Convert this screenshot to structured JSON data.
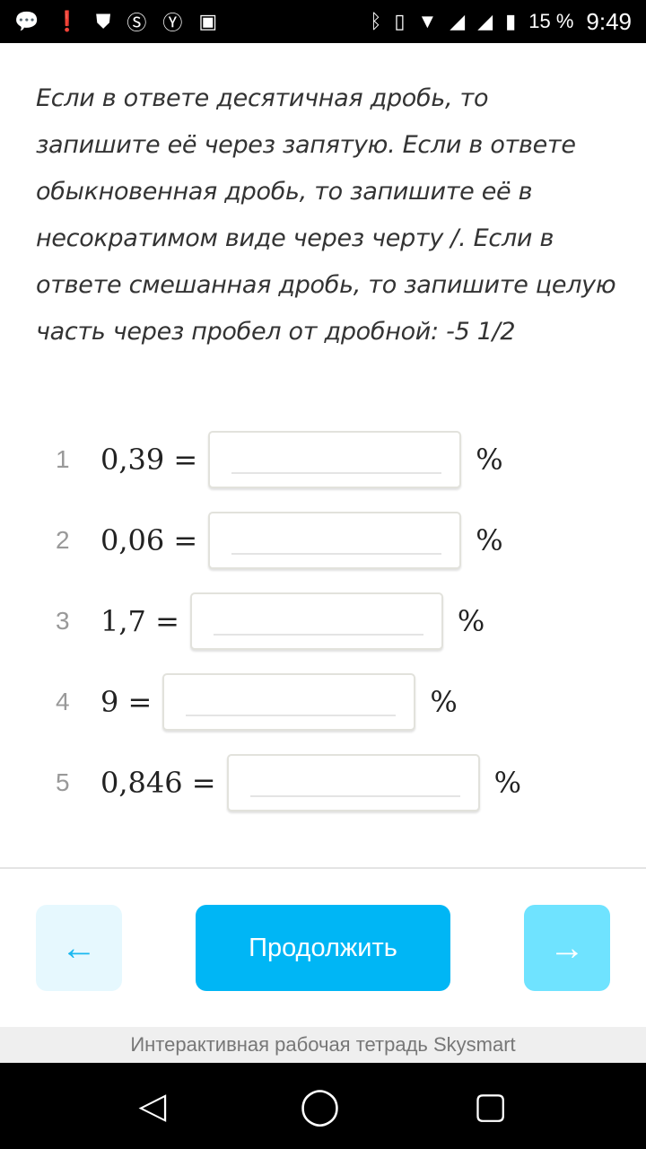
{
  "status_bar": {
    "battery": "15 %",
    "time": "9:49",
    "icons": [
      "message-icon",
      "alert-icon",
      "shield-icon",
      "skype-icon",
      "yandex-icon",
      "image-icon",
      "bluetooth-icon",
      "vibrate-icon",
      "wifi-icon",
      "signal-icon",
      "signal-icon",
      "battery-icon"
    ]
  },
  "instructions": "Если в ответе десятичная дробь, то запишите её через запятую. Если в ответе обыкновенная дробь, то запишите её в несократимом виде через черту /. Если в ответе смешанная дробь, то запишите целую часть через пробел от дробной: -5 1/2",
  "tasks": [
    {
      "num": "1",
      "expr": "0,39 =",
      "value": "",
      "unit": "%"
    },
    {
      "num": "2",
      "expr": "0,06 =",
      "value": "",
      "unit": "%"
    },
    {
      "num": "3",
      "expr": "1,7 =",
      "value": "",
      "unit": "%"
    },
    {
      "num": "4",
      "expr": "9 =",
      "value": "",
      "unit": "%"
    },
    {
      "num": "5",
      "expr": "0,846 =",
      "value": "",
      "unit": "%"
    }
  ],
  "buttons": {
    "back": "←",
    "continue": "Продолжить",
    "next": "→"
  },
  "colors": {
    "accent": "#00b6f5",
    "next": "#6fe3ff",
    "back_bg": "#e6f8fe"
  },
  "footer": "Интерактивная рабочая тетрадь Skysmart",
  "nav": {
    "back": "◁",
    "home": "◯",
    "recents": "▢"
  }
}
